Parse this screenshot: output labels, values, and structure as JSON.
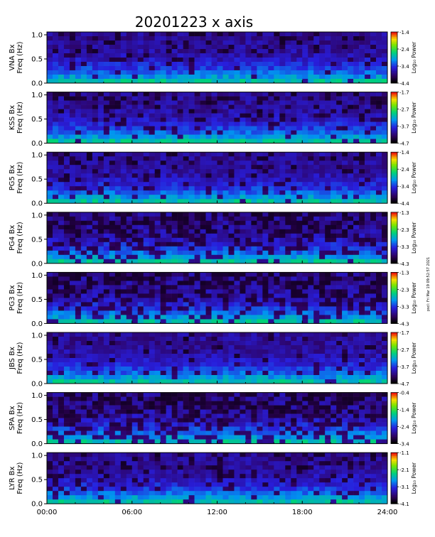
{
  "chart_data": {
    "type": "heatmap",
    "title": "20201223 x axis",
    "x_ticks": [
      "00:00",
      "06:00",
      "12:00",
      "18:00",
      "24:00"
    ],
    "xlim_hours": [
      0,
      24
    ],
    "ylim": [
      0,
      1.0
    ],
    "y_ticks": [
      "0.0",
      "0.5",
      "1.0"
    ],
    "colorbar_label": "Log₁₀ Power",
    "side_note": "pscl: Fri Mar 19 09:52:57 2021",
    "panels": [
      {
        "station": "VNA",
        "ylabel_line1": "VNA Bx",
        "ylabel_line2": "Freq (Hz)",
        "cbar_ticks": [
          "-1.4",
          "-2.4",
          "-3.4",
          "-4.4"
        ],
        "cbar_range": [
          -4.4,
          -1.4
        ]
      },
      {
        "station": "KSS",
        "ylabel_line1": "KSS Bx",
        "ylabel_line2": "Freq (Hz)",
        "cbar_ticks": [
          "-1.7",
          "-2.7",
          "-3.7",
          "-4.7"
        ],
        "cbar_range": [
          -4.7,
          -1.7
        ]
      },
      {
        "station": "PG5",
        "ylabel_line1": "PG5 Bx",
        "ylabel_line2": "Freq (Hz)",
        "cbar_ticks": [
          "-1.4",
          "-2.4",
          "-3.4",
          "-4.4"
        ],
        "cbar_range": [
          -4.4,
          -1.4
        ]
      },
      {
        "station": "PG4",
        "ylabel_line1": "PG4 Bx",
        "ylabel_line2": "Freq (Hz)",
        "cbar_ticks": [
          "-1.3",
          "-2.3",
          "-3.3",
          "-4.3"
        ],
        "cbar_range": [
          -4.3,
          -1.3
        ]
      },
      {
        "station": "PG3",
        "ylabel_line1": "PG3 Bx",
        "ylabel_line2": "Freq (Hz)",
        "cbar_ticks": [
          "-1.3",
          "-2.3",
          "-3.3",
          "-4.3"
        ],
        "cbar_range": [
          -4.3,
          -1.3
        ]
      },
      {
        "station": "JBS",
        "ylabel_line1": "JBS Bx",
        "ylabel_line2": "Freq (Hz)",
        "cbar_ticks": [
          "-1.7",
          "-2.7",
          "-3.7",
          "-4.7"
        ],
        "cbar_range": [
          -4.7,
          -1.7
        ]
      },
      {
        "station": "SPA",
        "ylabel_line1": "SPA Bx",
        "ylabel_line2": "Freq (Hz)",
        "cbar_ticks": [
          "-0.4",
          "-1.4",
          "-2.4",
          "-3.4"
        ],
        "cbar_range": [
          -3.4,
          -0.4
        ]
      },
      {
        "station": "LYR",
        "ylabel_line1": "LYR Bx",
        "ylabel_line2": "Freq (Hz)",
        "cbar_ticks": [
          "-1.1",
          "-2.1",
          "-3.1",
          "-4.1"
        ],
        "cbar_range": [
          -4.1,
          -1.1
        ]
      }
    ]
  }
}
